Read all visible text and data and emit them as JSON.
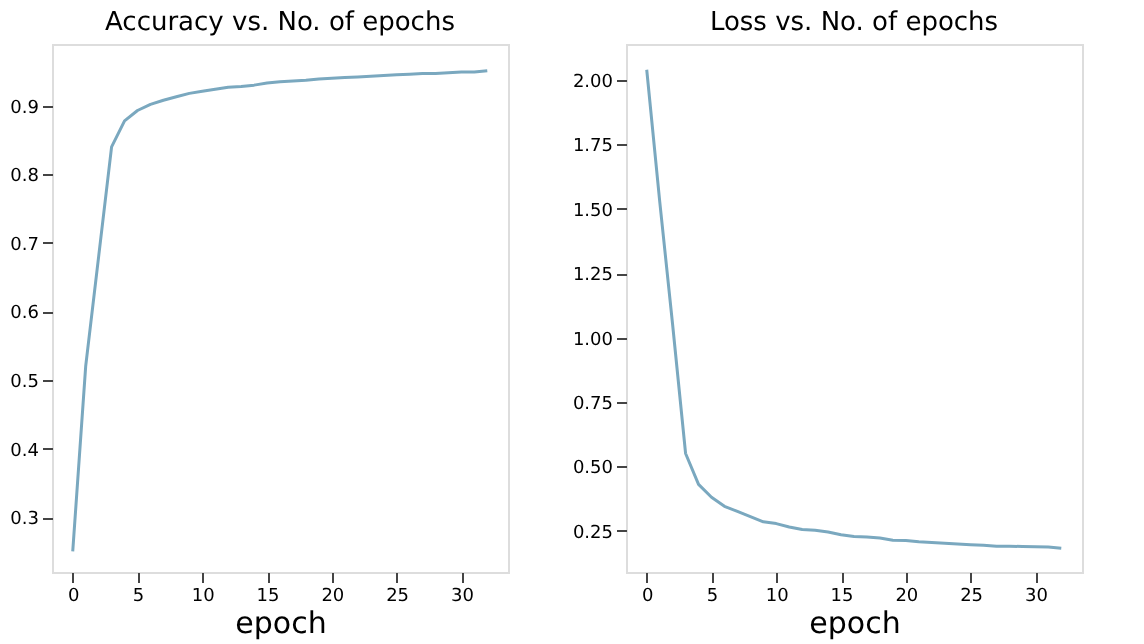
{
  "chart_data": [
    {
      "type": "line",
      "title": "Accuracy vs. No. of epochs",
      "xlabel": "epoch",
      "grid": false,
      "legend": false,
      "x": [
        0,
        1,
        2,
        3,
        4,
        5,
        6,
        7,
        8,
        9,
        10,
        11,
        12,
        13,
        14,
        15,
        16,
        17,
        18,
        19,
        20,
        21,
        22,
        23,
        24,
        25,
        26,
        27,
        28,
        29,
        30,
        31,
        32
      ],
      "series": [
        {
          "color": "#7aa8bf",
          "values": [
            0.25,
            0.52,
            0.68,
            0.84,
            0.878,
            0.893,
            0.902,
            0.908,
            0.913,
            0.918,
            0.921,
            0.924,
            0.927,
            0.928,
            0.93,
            0.933,
            0.935,
            0.936,
            0.937,
            0.939,
            0.94,
            0.941,
            0.942,
            0.943,
            0.944,
            0.945,
            0.946,
            0.947,
            0.947,
            0.948,
            0.949,
            0.949,
            0.951
          ]
        }
      ],
      "xlim": [
        -1.6,
        33.6
      ],
      "xticks": [
        0,
        5,
        10,
        15,
        20,
        25,
        30
      ],
      "ylim": [
        0.22,
        0.99
      ],
      "yticks": [
        0.3,
        0.4,
        0.5,
        0.6,
        0.7,
        0.8,
        0.9
      ]
    },
    {
      "type": "line",
      "title": "Loss vs. No. of epochs",
      "xlabel": "epoch",
      "grid": false,
      "legend": false,
      "x": [
        0,
        1,
        2,
        3,
        4,
        5,
        6,
        7,
        8,
        9,
        10,
        11,
        12,
        13,
        14,
        15,
        16,
        17,
        18,
        19,
        20,
        21,
        22,
        23,
        24,
        25,
        26,
        27,
        28,
        29,
        30,
        31,
        32
      ],
      "series": [
        {
          "color": "#7aa8bf",
          "values": [
            2.04,
            1.53,
            1.05,
            0.55,
            0.43,
            0.38,
            0.345,
            0.325,
            0.305,
            0.285,
            0.278,
            0.265,
            0.255,
            0.252,
            0.245,
            0.235,
            0.228,
            0.226,
            0.222,
            0.213,
            0.212,
            0.207,
            0.205,
            0.202,
            0.199,
            0.196,
            0.194,
            0.19,
            0.19,
            0.189,
            0.188,
            0.187,
            0.182
          ]
        }
      ],
      "xlim": [
        -1.6,
        33.6
      ],
      "xticks": [
        0,
        5,
        10,
        15,
        20,
        25,
        30
      ],
      "ylim": [
        0.09,
        2.14
      ],
      "yticks": [
        {
          "value": 0.25,
          "label": "0.25"
        },
        {
          "value": 0.5,
          "label": "0.50"
        },
        {
          "value": 0.75,
          "label": "0.75"
        },
        {
          "value": 1,
          "label": "1.00"
        },
        {
          "value": 1.25,
          "label": "1.25"
        },
        {
          "value": 1.5,
          "label": "1.50"
        },
        {
          "value": 1.75,
          "label": "1.75"
        },
        {
          "value": 2,
          "label": "2.00"
        }
      ]
    }
  ]
}
